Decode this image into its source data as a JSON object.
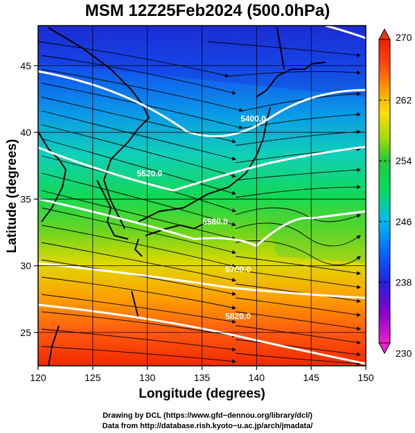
{
  "title": "MSM 12Z25Feb2024 (500.0hPa)",
  "xlabel": "Longitude (degrees)",
  "ylabel": "Latitude  (degrees)",
  "credits": [
    "Drawing by DCL (https://www.gfd−dennou.org/library/dcl/)",
    "Data from http://database.rish.kyoto−u.ac.jp/arch/jmadata/"
  ],
  "map": {
    "lon_range": [
      120,
      150
    ],
    "lat_range": [
      22.5,
      48
    ],
    "x_ticks": [
      120,
      125,
      130,
      135,
      140,
      145,
      150
    ],
    "y_ticks": [
      25,
      30,
      35,
      40,
      45
    ],
    "grid": true,
    "field": "temperature",
    "colorbar": {
      "min": 230,
      "max": 270,
      "tick_values": [
        230,
        238,
        246,
        254,
        262,
        270
      ],
      "placement": "right",
      "colors": [
        "#ee22cc",
        "#8800cc",
        "#2222dd",
        "#0066ff",
        "#00bbee",
        "#00dd66",
        "#22cc33",
        "#aadd00",
        "#ffdd00",
        "#ff9900",
        "#ff4411",
        "#ee2200"
      ]
    },
    "contours": [
      {
        "label": "5400.0",
        "lon": 139.7,
        "lat": 40.8
      },
      {
        "label": "5520.0",
        "lon": 130.2,
        "lat": 36.7
      },
      {
        "label": "5580.0",
        "lon": 136.2,
        "lat": 33.1
      },
      {
        "label": "5700.0",
        "lon": 138.3,
        "lat": 29.5
      },
      {
        "label": "5820.0",
        "lon": 138.3,
        "lat": 26.0
      }
    ]
  }
}
